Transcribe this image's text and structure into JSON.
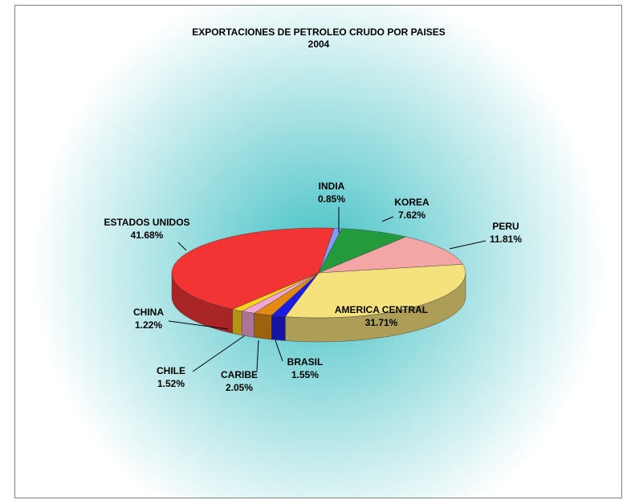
{
  "chart_data": {
    "type": "pie3d",
    "title": "EXPORTACIONES DE PETROLEO CRUDO POR PAISES",
    "subtitle": "2004",
    "categories": [
      "INDIA",
      "KOREA",
      "PERU",
      "AMERICA CENTRAL",
      "BRASIL",
      "CARIBE",
      "CHILE",
      "CHINA",
      "ESTADOS UNIDOS"
    ],
    "values": [
      0.85,
      7.62,
      11.81,
      31.71,
      1.55,
      2.05,
      1.52,
      1.22,
      41.68
    ],
    "value_labels": [
      "0.85%",
      "7.62%",
      "11.81%",
      "31.71%",
      "1.55%",
      "2.05%",
      "1.52%",
      "1.22%",
      "41.68%"
    ],
    "colors": [
      "#7f9cff",
      "#239a3c",
      "#f4a6a6",
      "#f6e27c",
      "#1c1ce6",
      "#e28a12",
      "#f2a6d6",
      "#ffd21e",
      "#f23434"
    ]
  }
}
